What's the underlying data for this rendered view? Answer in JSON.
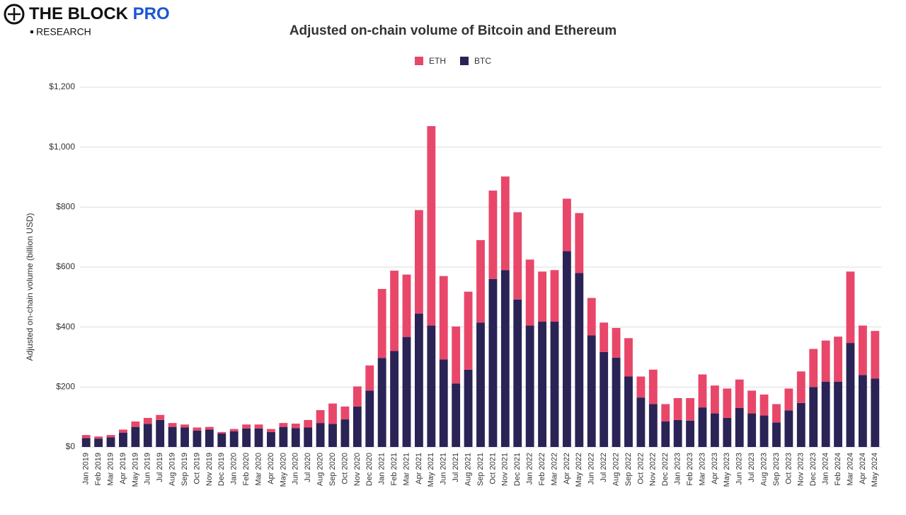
{
  "header": {
    "brand": "THE BLOCK",
    "brand_suffix": "PRO",
    "sub": "RESEARCH"
  },
  "chart_data": {
    "type": "stacked_bar",
    "title": "Adjusted on-chain volume of Bitcoin and Ethereum",
    "y_label": "Adjusted on-chain volume (billion USD)",
    "legend": "top",
    "grid": true,
    "categories": [
      "Jan 2019",
      "Feb 2019",
      "Mar 2019",
      "Apr 2019",
      "May 2019",
      "Jun 2019",
      "Jul 2019",
      "Aug 2019",
      "Sep 2019",
      "Oct 2019",
      "Nov 2019",
      "Dec 2019",
      "Jan 2020",
      "Feb 2020",
      "Mar 2020",
      "Apr 2020",
      "May 2020",
      "Jun 2020",
      "Jul 2020",
      "Aug 2020",
      "Sep 2020",
      "Oct 2020",
      "Nov 2020",
      "Dec 2020",
      "Jan 2021",
      "Feb 2021",
      "Mar 2021",
      "Apr 2021",
      "May 2021",
      "Jun 2021",
      "Jul 2021",
      "Aug 2021",
      "Sep 2021",
      "Oct 2021",
      "Nov 2021",
      "Dec 2021",
      "Jan 2022",
      "Feb 2022",
      "Mar 2022",
      "Apr 2022",
      "May 2022",
      "Jun 2022",
      "Jul 2022",
      "Aug 2022",
      "Sep 2022",
      "Oct 2022",
      "Nov 2022",
      "Dec 2022",
      "Jan 2023",
      "Feb 2023",
      "Mar 2023",
      "Apr 2023",
      "May 2023",
      "Jun 2023",
      "Jul 2023",
      "Aug 2023",
      "Sep 2023",
      "Oct 2023",
      "Nov 2023",
      "Dec 2023",
      "Jan 2024",
      "Feb 2024",
      "Mar 2024",
      "Apr 2024",
      "May 2024"
    ],
    "series": [
      {
        "name": "ETH",
        "color": "#e8476a",
        "values": [
          10,
          7,
          8,
          10,
          18,
          20,
          17,
          13,
          10,
          10,
          9,
          5,
          8,
          13,
          13,
          10,
          13,
          15,
          25,
          43,
          68,
          43,
          67,
          84,
          230,
          268,
          208,
          345,
          665,
          278,
          190,
          260,
          275,
          295,
          312,
          291,
          220,
          167,
          172,
          175,
          200,
          125,
          98,
          99,
          128,
          70,
          115,
          58,
          73,
          75,
          110,
          93,
          98,
          95,
          76,
          70,
          61,
          73,
          105,
          127,
          137,
          150,
          238,
          165,
          159
        ]
      },
      {
        "name": "BTC",
        "color": "#2a2356",
        "values": [
          30,
          28,
          32,
          48,
          67,
          77,
          90,
          67,
          65,
          55,
          58,
          45,
          52,
          62,
          62,
          50,
          67,
          63,
          65,
          80,
          77,
          92,
          135,
          188,
          297,
          320,
          367,
          445,
          405,
          292,
          212,
          258,
          415,
          560,
          590,
          492,
          405,
          418,
          418,
          653,
          580,
          372,
          317,
          298,
          235,
          165,
          143,
          85,
          90,
          88,
          132,
          112,
          97,
          130,
          112,
          105,
          82,
          122,
          147,
          200,
          218,
          218,
          347,
          240,
          228
        ]
      }
    ],
    "ylim": [
      0,
      1200
    ],
    "yticks": [
      {
        "value": 0,
        "label": "$0"
      },
      {
        "value": 200,
        "label": "$200"
      },
      {
        "value": 400,
        "label": "$400"
      },
      {
        "value": 600,
        "label": "$600"
      },
      {
        "value": 800,
        "label": "$800"
      },
      {
        "value": 1000,
        "label": "$1,000"
      },
      {
        "value": 1200,
        "label": "$1,200"
      }
    ]
  }
}
